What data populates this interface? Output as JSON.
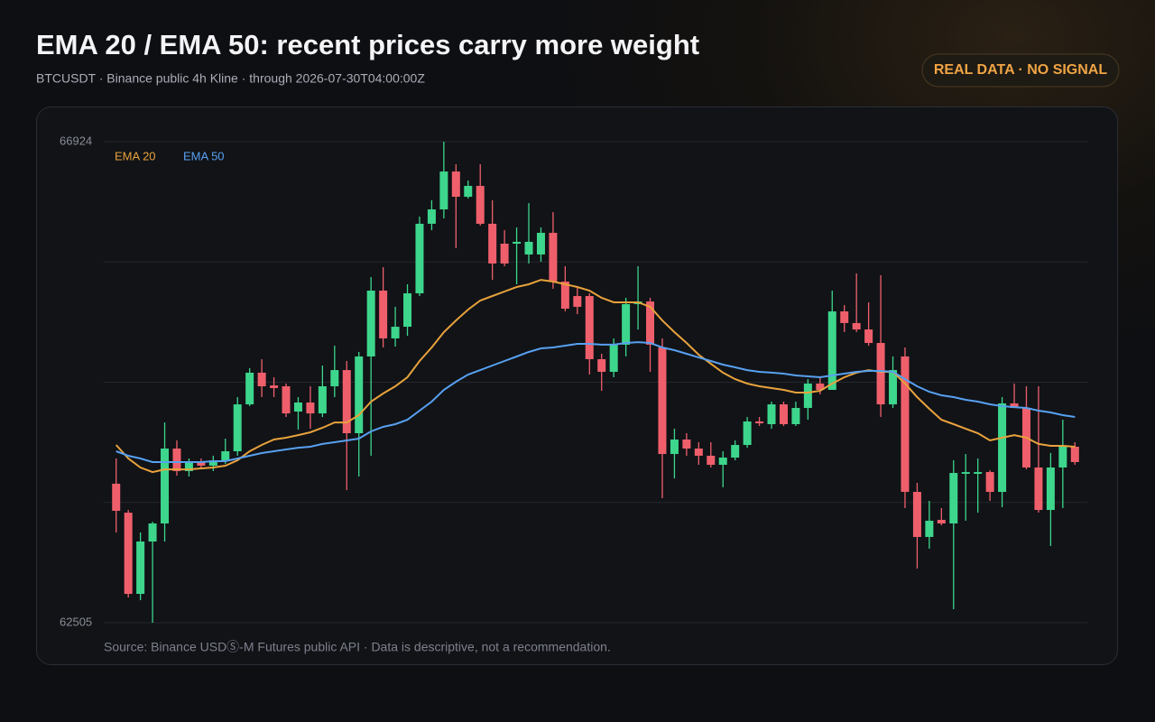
{
  "chart_data": {
    "type": "candlestick",
    "title": "EMA 20 / EMA 50: recent prices carry more weight",
    "subtitle": "BTCUSDT · Binance public 4h Kline · through 2026-07-30T04:00:00Z",
    "badge": "REAL DATA · NO SIGNAL",
    "source": "Source: Binance USDⓈ-M Futures public API · Data is descriptive, not a recommendation.",
    "ylim": [
      62505,
      66924
    ],
    "yticks": [
      62505,
      66924
    ],
    "up_color": "#3dd68c",
    "down_color": "#ef5f6b",
    "open": [
      63782,
      63516,
      62770,
      63251,
      63417,
      64105,
      63898,
      63981,
      63948,
      63997,
      64080,
      64511,
      64802,
      64685,
      64677,
      64445,
      64528,
      64428,
      64677,
      64826,
      64246,
      64951,
      65556,
      65117,
      65224,
      65531,
      66170,
      66302,
      66650,
      66418,
      66518,
      66170,
      65987,
      65987,
      65888,
      65888,
      66087,
      65639,
      65506,
      65506,
      64926,
      64810,
      65059,
      65432,
      65456,
      65034,
      64055,
      64188,
      64105,
      64039,
      63956,
      64022,
      64138,
      64354,
      64329,
      64511,
      64329,
      64478,
      64702,
      64644,
      65365,
      65258,
      65199,
      65075,
      64511,
      64951,
      63707,
      63293,
      63450,
      63417,
      63873,
      63873,
      63889,
      63707,
      64520,
      64478,
      63931,
      63541,
      63931,
      64122
    ],
    "high": [
      64014,
      63541,
      63334,
      63433,
      64345,
      64180,
      64014,
      64014,
      64039,
      64196,
      64578,
      64843,
      64926,
      64760,
      64702,
      64578,
      64677,
      64868,
      65050,
      64909,
      64992,
      65680,
      65772,
      65407,
      65614,
      66236,
      66385,
      66924,
      66717,
      66567,
      66717,
      66385,
      66111,
      66136,
      66360,
      66136,
      66277,
      65780,
      65589,
      65531,
      64976,
      65117,
      65490,
      65780,
      65490,
      65117,
      64287,
      64246,
      64163,
      64163,
      64080,
      64180,
      64395,
      64395,
      64536,
      64536,
      64536,
      64743,
      64760,
      65556,
      65423,
      65714,
      65448,
      65697,
      64951,
      65034,
      63790,
      63624,
      63558,
      63997,
      64055,
      64014,
      63906,
      64578,
      64702,
      64677,
      64677,
      64064,
      64370,
      64163
    ],
    "low": [
      63334,
      62737,
      62712,
      62505,
      63251,
      63856,
      63848,
      63914,
      63898,
      63964,
      64039,
      64495,
      64578,
      64578,
      64395,
      64279,
      64287,
      64395,
      64578,
      63724,
      63848,
      64039,
      65034,
      65042,
      65141,
      65506,
      66111,
      66219,
      65946,
      66402,
      66153,
      65655,
      65780,
      65614,
      65805,
      65821,
      65573,
      65365,
      65340,
      64785,
      64636,
      64760,
      64951,
      65199,
      64810,
      63649,
      63831,
      64039,
      63956,
      63931,
      63749,
      63997,
      64113,
      64312,
      64287,
      64312,
      64312,
      64370,
      64603,
      64644,
      65175,
      65175,
      65050,
      64395,
      64478,
      63558,
      63002,
      63185,
      63400,
      62629,
      63442,
      63516,
      63624,
      63566,
      64478,
      63914,
      63516,
      63210,
      63558,
      63956
    ],
    "close": [
      63533,
      62770,
      63251,
      63417,
      64105,
      63898,
      63981,
      63948,
      63997,
      64080,
      64511,
      64802,
      64677,
      64661,
      64428,
      64528,
      64428,
      64677,
      64826,
      64246,
      64951,
      65556,
      65117,
      65224,
      65531,
      66170,
      66302,
      66650,
      66418,
      66518,
      66170,
      65805,
      65805,
      66004,
      66004,
      66087,
      65639,
      65390,
      65407,
      64926,
      64810,
      65059,
      65432,
      65456,
      65059,
      64055,
      64188,
      64105,
      64039,
      63956,
      64022,
      64138,
      64354,
      64337,
      64511,
      64329,
      64478,
      64702,
      64644,
      65365,
      65258,
      65199,
      65075,
      64511,
      64826,
      63707,
      63293,
      63442,
      63417,
      63881,
      63889,
      63889,
      63707,
      64520,
      64478,
      63931,
      63541,
      63931,
      64122,
      63981
    ],
    "series": [
      {
        "name": "EMA 20",
        "color": "#e8a23c",
        "values": [
          64138,
          64014,
          63931,
          63889,
          63914,
          63914,
          63914,
          63923,
          63931,
          63948,
          63997,
          64080,
          64138,
          64188,
          64205,
          64229,
          64254,
          64296,
          64345,
          64345,
          64412,
          64536,
          64611,
          64677,
          64760,
          64909,
          65034,
          65175,
          65282,
          65382,
          65465,
          65506,
          65548,
          65589,
          65614,
          65655,
          65639,
          65614,
          65589,
          65556,
          65490,
          65448,
          65448,
          65448,
          65407,
          65282,
          65175,
          65075,
          64967,
          64884,
          64802,
          64743,
          64702,
          64677,
          64661,
          64644,
          64619,
          64619,
          64636,
          64702,
          64760,
          64802,
          64826,
          64810,
          64810,
          64702,
          64578,
          64470,
          64370,
          64329,
          64287,
          64246,
          64180,
          64205,
          64229,
          64205,
          64147,
          64130,
          64130,
          64122
        ]
      },
      {
        "name": "EMA 50",
        "color": "#58a0f0",
        "values": [
          64080,
          64039,
          64014,
          63981,
          63981,
          63981,
          63981,
          63981,
          63989,
          63989,
          64014,
          64039,
          64064,
          64080,
          64097,
          64113,
          64122,
          64147,
          64163,
          64180,
          64196,
          64263,
          64304,
          64329,
          64370,
          64453,
          64536,
          64644,
          64719,
          64785,
          64826,
          64868,
          64909,
          64951,
          64992,
          65025,
          65034,
          65050,
          65067,
          65067,
          65059,
          65059,
          65075,
          65083,
          65075,
          65034,
          65009,
          64976,
          64942,
          64909,
          64876,
          64851,
          64826,
          64810,
          64802,
          64793,
          64777,
          64768,
          64760,
          64777,
          64793,
          64810,
          64818,
          64818,
          64810,
          64743,
          64677,
          64627,
          64594,
          64578,
          64553,
          64536,
          64511,
          64495,
          64486,
          64478,
          64453,
          64437,
          64412,
          64395
        ]
      }
    ]
  }
}
